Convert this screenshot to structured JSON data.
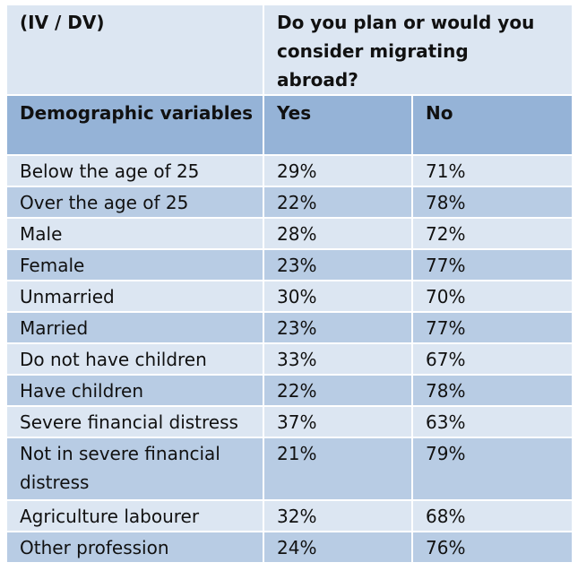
{
  "header": {
    "iv_dv": "(IV / DV)",
    "question": "Do you plan or would you consider migrating abroad?"
  },
  "columns": {
    "demographic": "Demographic variables",
    "yes": "Yes",
    "no": "No"
  },
  "rows": [
    {
      "label": "Below the age of 25",
      "yes": "29%",
      "no": "71%"
    },
    {
      "label": "Over the age of 25",
      "yes": "22%",
      "no": "78%"
    },
    {
      "label": "Male",
      "yes": "28%",
      "no": "72%"
    },
    {
      "label": "Female",
      "yes": "23%",
      "no": "77%"
    },
    {
      "label": "Unmarried",
      "yes": "30%",
      "no": "70%"
    },
    {
      "label": "Married",
      "yes": "23%",
      "no": "77%"
    },
    {
      "label": "Do not have children",
      "yes": "33%",
      "no": "67%"
    },
    {
      "label": "Have children",
      "yes": "22%",
      "no": "78%"
    },
    {
      "label": "Severe financial distress",
      "yes": "37%",
      "no": "63%"
    },
    {
      "label": "Not in severe financial distress",
      "yes": "21%",
      "no": "79%"
    },
    {
      "label": "Agriculture labourer",
      "yes": "32%",
      "no": "68%"
    },
    {
      "label": "Other profession",
      "yes": "24%",
      "no": "76%"
    }
  ],
  "colors": {
    "light": "#dce6f2",
    "mid": "#b8cce4",
    "header": "#95b3d7"
  }
}
